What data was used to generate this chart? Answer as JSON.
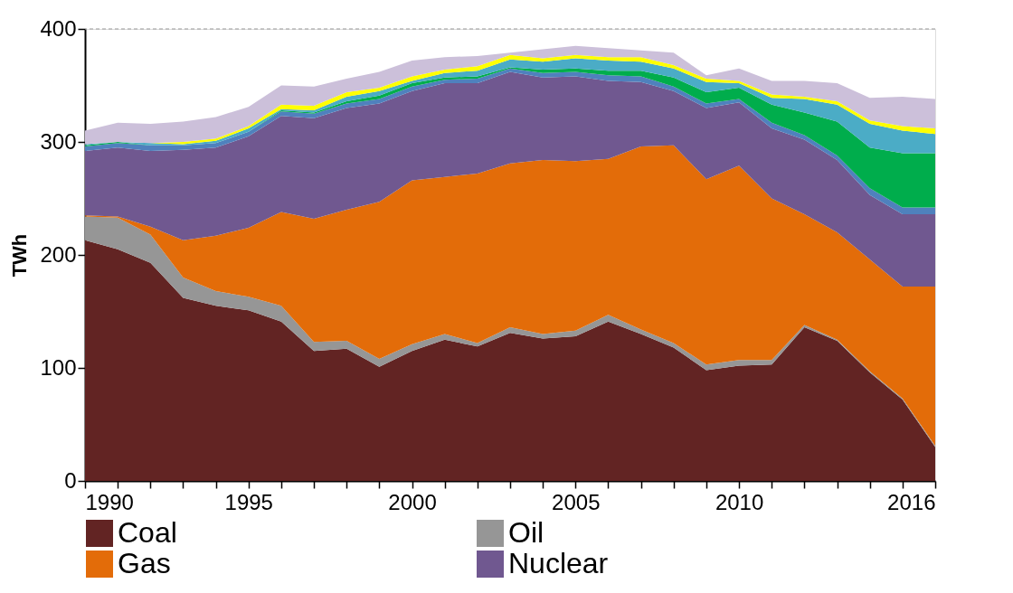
{
  "chart_data": {
    "type": "area",
    "stacked": true,
    "ylabel": "TWh",
    "legend": "bottom",
    "grid": false,
    "x": [
      1990,
      1991,
      1992,
      1993,
      1994,
      1995,
      1996,
      1997,
      1998,
      1999,
      2000,
      2001,
      2002,
      2003,
      2004,
      2005,
      2006,
      2007,
      2008,
      2009,
      2010,
      2011,
      2012,
      2013,
      2014,
      2015,
      2016
    ],
    "xlim": [
      1990,
      2016
    ],
    "xticks": [
      1990,
      {
        "value": 1991,
        "label": null
      },
      {
        "value": 1992,
        "label": null
      },
      {
        "value": 1993,
        "label": null
      },
      {
        "value": 1994,
        "label": null
      },
      1995,
      {
        "value": 1996,
        "label": null
      },
      {
        "value": 1997,
        "label": null
      },
      {
        "value": 1998,
        "label": null
      },
      {
        "value": 1999,
        "label": null
      },
      2000,
      {
        "value": 2001,
        "label": null
      },
      {
        "value": 2002,
        "label": null
      },
      {
        "value": 2003,
        "label": null
      },
      {
        "value": 2004,
        "label": null
      },
      2005,
      {
        "value": 2006,
        "label": null
      },
      {
        "value": 2007,
        "label": null
      },
      {
        "value": 2008,
        "label": null
      },
      {
        "value": 2009,
        "label": null
      },
      2010,
      {
        "value": 2011,
        "label": null
      },
      {
        "value": 2012,
        "label": null
      },
      {
        "value": 2013,
        "label": null
      },
      {
        "value": 2014,
        "label": null
      },
      {
        "value": 2015,
        "label": null
      },
      2016
    ],
    "ylim": [
      0,
      400
    ],
    "yticks": [
      0,
      100,
      200,
      300,
      400
    ],
    "ref_lines": [
      {
        "axis": "y",
        "value": 400,
        "color": "#999999",
        "line_style": "dashed"
      }
    ],
    "series": [
      {
        "name": "Coal",
        "color": "#622423",
        "values": [
          213,
          205,
          193,
          162,
          155,
          151,
          141,
          115,
          117,
          101,
          115,
          125,
          119,
          131,
          126,
          128,
          141,
          130,
          118,
          98,
          102,
          103,
          136,
          124,
          96,
          72,
          30
        ]
      },
      {
        "name": "Oil",
        "color": "#969696",
        "values": [
          21,
          28,
          25,
          18,
          13,
          12,
          14,
          8,
          7,
          7,
          6,
          5,
          3,
          5,
          4,
          5,
          6,
          4,
          4,
          5,
          5,
          4,
          2,
          1,
          1,
          1,
          1
        ]
      },
      {
        "name": "Gas",
        "color": "#e36c09",
        "values": [
          1,
          1,
          7,
          33,
          49,
          61,
          83,
          109,
          116,
          139,
          145,
          139,
          150,
          145,
          154,
          150,
          138,
          162,
          175,
          164,
          172,
          143,
          98,
          95,
          99,
          99,
          141
        ]
      },
      {
        "name": "Nuclear",
        "color": "#705890",
        "values": [
          57,
          61,
          67,
          80,
          78,
          81,
          85,
          89,
          90,
          87,
          79,
          83,
          80,
          81,
          73,
          75,
          69,
          57,
          48,
          63,
          56,
          62,
          66,
          64,
          57,
          64,
          64
        ]
      },
      {
        "color": "#4f81bd",
        "values": [
          4,
          4,
          5,
          4,
          4,
          4,
          4,
          4,
          4,
          4,
          4,
          3,
          4,
          3,
          4,
          4,
          5,
          5,
          4,
          4,
          3,
          5,
          4,
          4,
          6,
          6,
          6
        ]
      },
      {
        "color": "#00ad4c",
        "values": [
          1,
          1,
          0,
          0,
          0,
          0,
          1,
          1,
          2,
          3,
          3,
          2,
          2,
          1,
          3,
          3,
          4,
          5,
          8,
          10,
          10,
          16,
          20,
          30,
          36,
          48,
          48
        ]
      },
      {
        "color": "#4bacc6",
        "values": [
          1,
          0,
          2,
          1,
          2,
          3,
          1,
          2,
          4,
          4,
          2,
          4,
          5,
          7,
          7,
          9,
          9,
          8,
          8,
          9,
          4,
          6,
          12,
          15,
          21,
          20,
          17
        ]
      },
      {
        "color": "#ffff00",
        "values": [
          0,
          0,
          0,
          2,
          2,
          2,
          4,
          4,
          4,
          3,
          4,
          3,
          4,
          4,
          3,
          3,
          3,
          4,
          3,
          3,
          2,
          3,
          2,
          3,
          3,
          4,
          5
        ]
      },
      {
        "color": "#ccc0da",
        "values": [
          12,
          17,
          17,
          18,
          19,
          17,
          17,
          17,
          12,
          14,
          14,
          11,
          9,
          2,
          8,
          8,
          8,
          6,
          11,
          3,
          11,
          12,
          14,
          16,
          20,
          26,
          26
        ]
      }
    ]
  }
}
